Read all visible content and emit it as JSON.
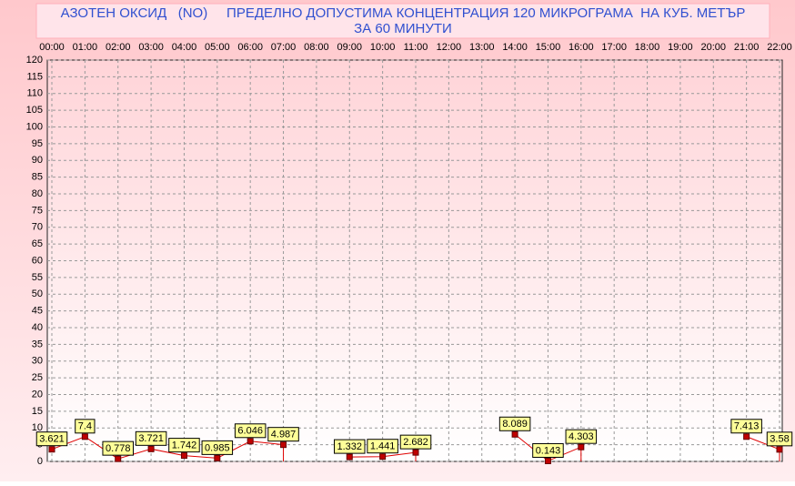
{
  "chart_data": {
    "type": "line",
    "title": "АЗОТЕН ОКСИД   (NO)     ПРЕДЕЛНО ДОПУСТИМА КОНЦЕНТРАЦИЯ 120 МИКРОГРАМА  НА КУБ. МЕТЪР",
    "subtitle": "ЗА 60 МИНУТИ",
    "categories": [
      "00:00",
      "01:00",
      "02:00",
      "03:00",
      "04:00",
      "05:00",
      "06:00",
      "07:00",
      "08:00",
      "09:00",
      "10:00",
      "11:00",
      "12:00",
      "13:00",
      "14:00",
      "15:00",
      "16:00",
      "17:00",
      "18:00",
      "19:00",
      "20:00",
      "21:00",
      "22:00"
    ],
    "values": [
      3.621,
      7.4,
      0.778,
      3.721,
      1.742,
      0.985,
      6.046,
      4.987,
      null,
      1.332,
      1.441,
      2.682,
      null,
      null,
      8.089,
      0.143,
      4.303,
      null,
      null,
      null,
      null,
      7.413,
      3.58
    ],
    "color": "#e00000",
    "ylim": [
      0,
      120
    ],
    "yticks": [
      0,
      5,
      10,
      15,
      20,
      25,
      30,
      35,
      40,
      45,
      50,
      55,
      60,
      65,
      70,
      75,
      80,
      85,
      90,
      95,
      100,
      105,
      110,
      115,
      120
    ],
    "grid": true
  }
}
